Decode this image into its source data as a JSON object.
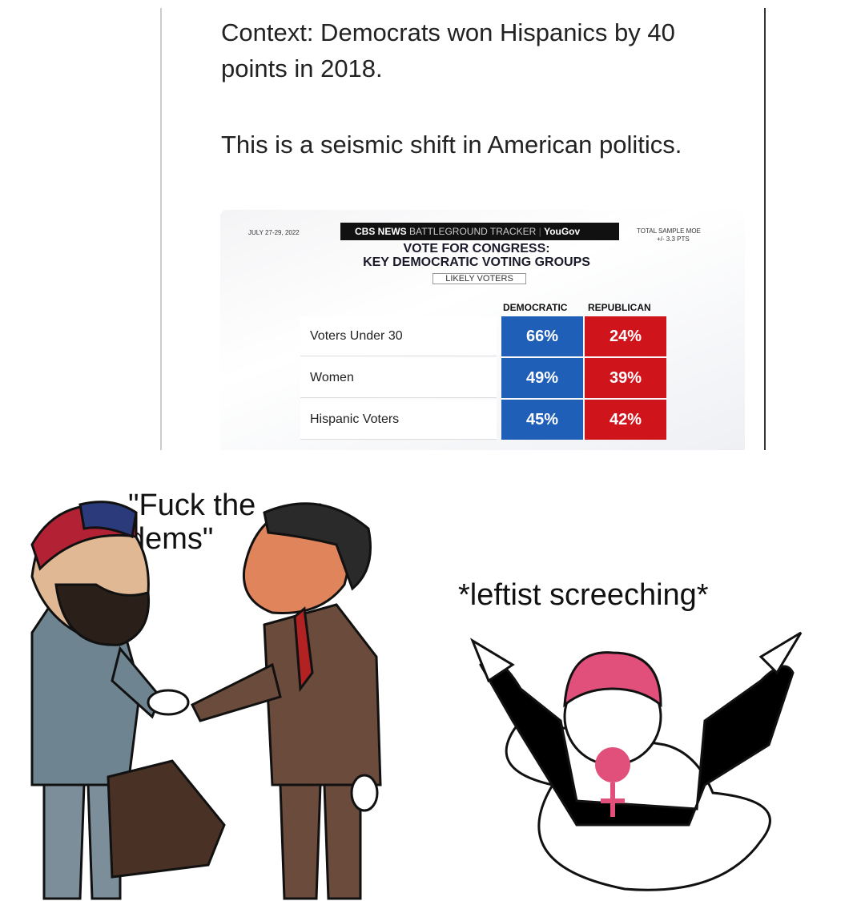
{
  "post": {
    "text": [
      "Context: Democrats won Hispanics by 40 points in 2018.",
      "This is a seismic shift in American politics."
    ]
  },
  "graphic": {
    "date": "JULY 27-29, 2022",
    "brand": "CBS NEWS",
    "tracker": "BATTLEGROUND TRACKER",
    "partner": "YouGov",
    "moe_label": "TOTAL SAMPLE MOE",
    "moe": "+/- 3.3 PTS",
    "title": "VOTE FOR CONGRESS:",
    "subtitle": "KEY DEMOCRATIC VOTING GROUPS",
    "tag": "LIKELY VOTERS",
    "table": {
      "header": [
        "DEMOCRATIC",
        "REPUBLICAN"
      ],
      "rows": [
        [
          "Voters Under 30",
          "66%",
          "24%"
        ],
        [
          "Women",
          "49%",
          "39%"
        ],
        [
          "Hispanic Voters",
          "45%",
          "42%"
        ]
      ]
    }
  },
  "meme": {
    "left_caption": "\"Fuck the dems\"",
    "right_caption": "*leftist screeching*"
  }
}
